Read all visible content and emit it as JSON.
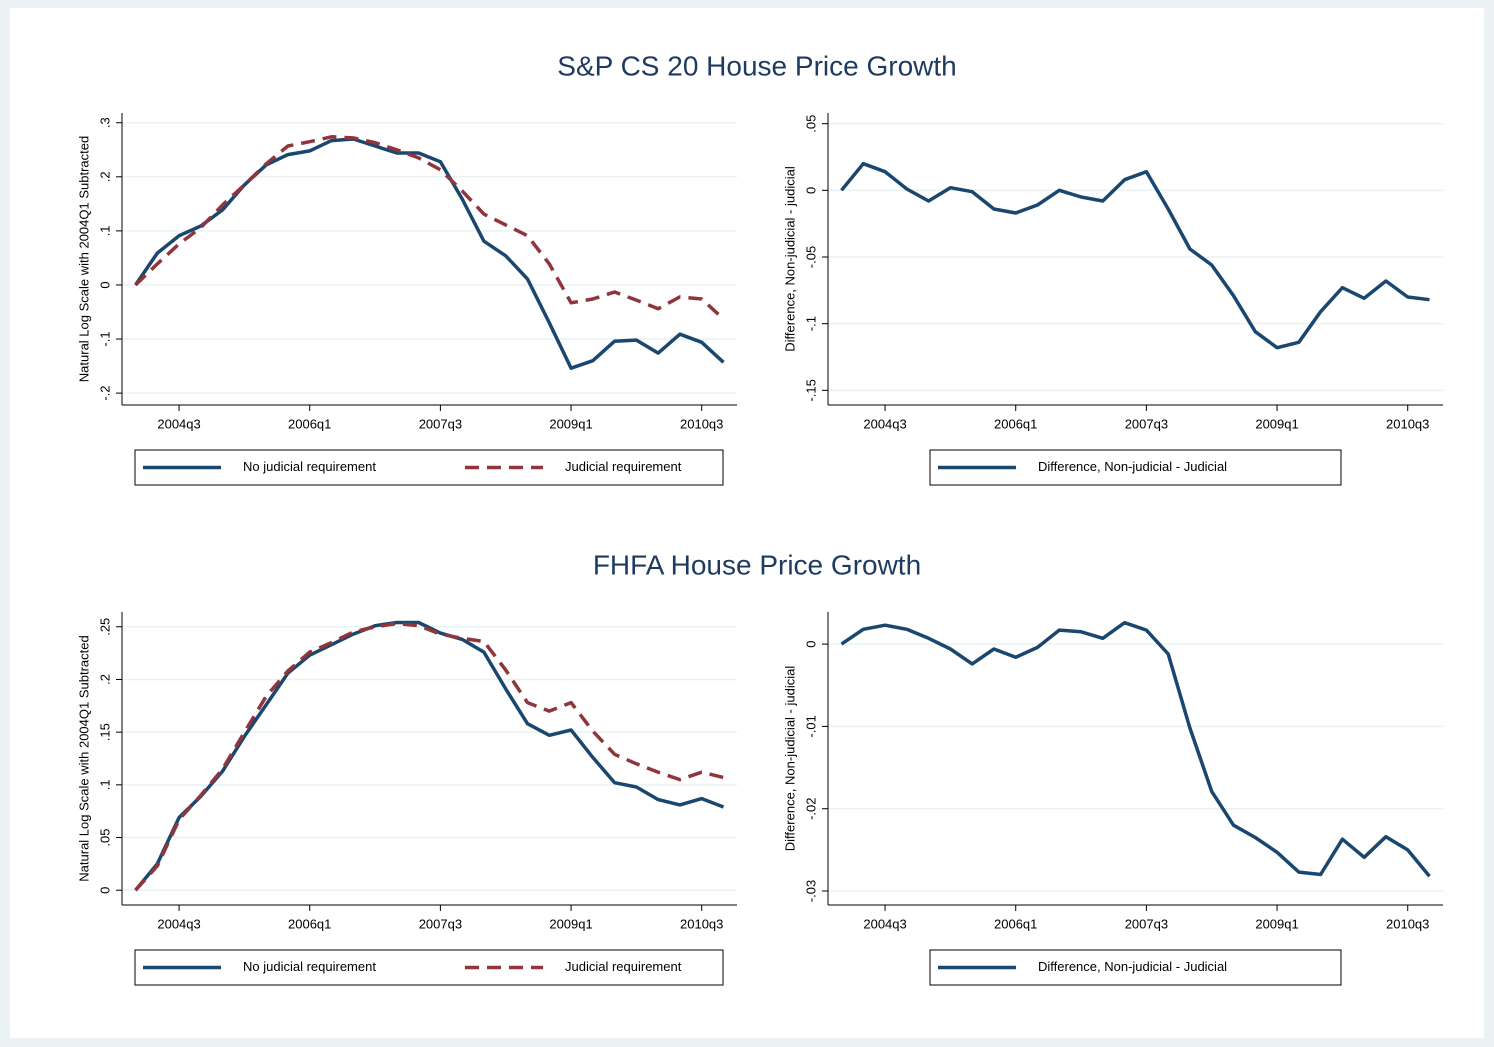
{
  "chart_data": [
    {
      "type": "line",
      "title": "S&P CS 20 House Price Growth",
      "y_label": "Natural Log Scale with 2004Q1 Subtracted",
      "categories": [
        null,
        null,
        "2004q3",
        null,
        null,
        null,
        null,
        null,
        "2006q1",
        null,
        null,
        null,
        null,
        null,
        "2007q3",
        null,
        null,
        null,
        null,
        null,
        "2009q1",
        null,
        null,
        null,
        null,
        null,
        "2010q3",
        null
      ],
      "series": [
        {
          "name": "No judicial requirement",
          "color": "#1a476f",
          "dash": false,
          "values": [
            0,
            0.059,
            0.091,
            0.109,
            0.139,
            0.185,
            0.222,
            0.241,
            0.248,
            0.267,
            0.27,
            0.257,
            0.244,
            0.244,
            0.228,
            0.159,
            0.081,
            0.054,
            0.011,
            -0.07,
            -0.154,
            -0.14,
            -0.104,
            -0.102,
            -0.126,
            -0.091,
            -0.106,
            -0.143
          ]
        },
        {
          "name": "Judicial requirement",
          "color": "#90353b",
          "dash": true,
          "values": [
            0,
            0.039,
            0.076,
            0.106,
            0.148,
            0.185,
            0.224,
            0.257,
            0.265,
            0.274,
            0.272,
            0.263,
            0.25,
            0.235,
            0.213,
            0.174,
            0.131,
            0.111,
            0.091,
            0.039,
            -0.033,
            -0.026,
            -0.013,
            -0.028,
            -0.044,
            -0.022,
            -0.026,
            -0.063
          ]
        }
      ],
      "ylim": [
        -0.222,
        0.318
      ],
      "yticks": [
        {
          "value": -0.2,
          "label": "-.2"
        },
        {
          "value": -0.1,
          "label": "-.1"
        },
        0,
        {
          "value": 0.1,
          "label": ".1"
        },
        {
          "value": 0.2,
          "label": ".2"
        },
        {
          "value": 0.3,
          "label": ".3"
        }
      ],
      "grid": true,
      "legend": "bottom"
    },
    {
      "type": "line",
      "y_label": "Difference, Non-judicial - judicial",
      "categories": [
        null,
        null,
        "2004q3",
        null,
        null,
        null,
        null,
        null,
        "2006q1",
        null,
        null,
        null,
        null,
        null,
        "2007q3",
        null,
        null,
        null,
        null,
        null,
        "2009q1",
        null,
        null,
        null,
        null,
        null,
        "2010q3",
        null
      ],
      "series": [
        {
          "name": "Difference, Non-judicial - Judicial",
          "color": "#1a476f",
          "dash": false,
          "values": [
            0,
            0.02,
            0.014,
            0.001,
            -0.008,
            0.002,
            -0.001,
            -0.014,
            -0.017,
            -0.011,
            0,
            -0.005,
            -0.008,
            0.008,
            0.014,
            -0.014,
            -0.044,
            -0.056,
            -0.079,
            -0.106,
            -0.118,
            -0.114,
            -0.091,
            -0.073,
            -0.081,
            -0.068,
            -0.08,
            -0.082
          ]
        }
      ],
      "ylim": [
        -0.161,
        0.058
      ],
      "yticks": [
        {
          "value": -0.15,
          "label": "-.15"
        },
        {
          "value": -0.1,
          "label": "-.1"
        },
        {
          "value": -0.05,
          "label": "-.05"
        },
        0,
        {
          "value": 0.05,
          "label": ".05"
        }
      ],
      "grid": true,
      "legend": "bottom"
    },
    {
      "type": "line",
      "title": "FHFA House Price Growth",
      "y_label": "Natural Log Scale with 2004Q1 Subtracted",
      "categories": [
        null,
        null,
        "2004q3",
        null,
        null,
        null,
        null,
        null,
        "2006q1",
        null,
        null,
        null,
        null,
        null,
        "2007q3",
        null,
        null,
        null,
        null,
        null,
        "2009q1",
        null,
        null,
        null,
        null,
        null,
        "2010q3",
        null
      ],
      "series": [
        {
          "name": "No judicial requirement",
          "color": "#1a476f",
          "dash": false,
          "values": [
            0,
            0.025,
            0.069,
            0.089,
            0.113,
            0.146,
            0.176,
            0.206,
            0.223,
            0.233,
            0.243,
            0.251,
            0.254,
            0.254,
            0.244,
            0.238,
            0.226,
            0.191,
            0.158,
            0.147,
            0.152,
            0.126,
            0.102,
            0.098,
            0.086,
            0.081,
            0.087,
            0.079
          ]
        },
        {
          "name": "Judicial requirement",
          "color": "#90353b",
          "dash": true,
          "values": [
            0,
            0.023,
            0.067,
            0.09,
            0.115,
            0.15,
            0.184,
            0.208,
            0.226,
            0.235,
            0.245,
            0.25,
            0.253,
            0.251,
            0.243,
            0.239,
            0.236,
            0.209,
            0.178,
            0.17,
            0.178,
            0.151,
            0.129,
            0.12,
            0.112,
            0.105,
            0.112,
            0.107
          ]
        }
      ],
      "ylim": [
        -0.014,
        0.264
      ],
      "yticks": [
        0,
        {
          "value": 0.05,
          "label": ".05"
        },
        {
          "value": 0.1,
          "label": ".1"
        },
        {
          "value": 0.15,
          "label": ".15"
        },
        {
          "value": 0.2,
          "label": ".2"
        },
        {
          "value": 0.25,
          "label": ".25"
        }
      ],
      "grid": true,
      "legend": "bottom"
    },
    {
      "type": "line",
      "y_label": "Difference, Non-judicial - judicial",
      "categories": [
        null,
        null,
        "2004q3",
        null,
        null,
        null,
        null,
        null,
        "2006q1",
        null,
        null,
        null,
        null,
        null,
        "2007q3",
        null,
        null,
        null,
        null,
        null,
        "2009q1",
        null,
        null,
        null,
        null,
        null,
        "2010q3",
        null
      ],
      "series": [
        {
          "name": "Difference, Non-judicial - Judicial",
          "color": "#1a476f",
          "dash": false,
          "values": [
            0,
            0.0018,
            0.0023,
            0.0018,
            0.0007,
            -0.0006,
            -0.0024,
            -0.0006,
            -0.0016,
            -0.0004,
            0.0017,
            0.0015,
            0.0007,
            0.0026,
            0.0017,
            -0.0012,
            -0.0102,
            -0.0179,
            -0.022,
            -0.0235,
            -0.0253,
            -0.0277,
            -0.028,
            -0.0237,
            -0.0259,
            -0.0234,
            -0.025,
            -0.0282
          ]
        }
      ],
      "ylim": [
        -0.0317,
        0.0039
      ],
      "yticks": [
        {
          "value": -0.03,
          "label": "-.03"
        },
        {
          "value": -0.02,
          "label": "-.02"
        },
        {
          "value": -0.01,
          "label": "-.01"
        },
        0
      ],
      "grid": true,
      "legend": "bottom"
    }
  ]
}
